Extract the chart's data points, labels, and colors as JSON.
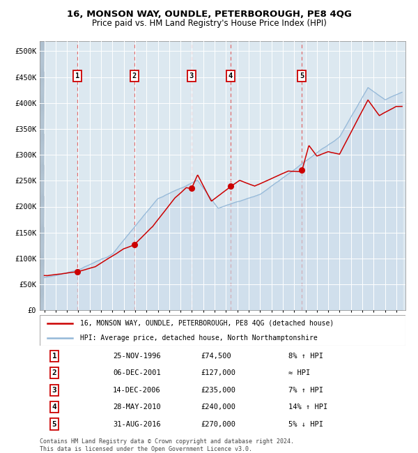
{
  "title1": "16, MONSON WAY, OUNDLE, PETERBOROUGH, PE8 4QG",
  "title2": "Price paid vs. HM Land Registry's House Price Index (HPI)",
  "ylabel_ticks": [
    "£0",
    "£50K",
    "£100K",
    "£150K",
    "£200K",
    "£250K",
    "£300K",
    "£350K",
    "£400K",
    "£450K",
    "£500K"
  ],
  "ytick_values": [
    0,
    50000,
    100000,
    150000,
    200000,
    250000,
    300000,
    350000,
    400000,
    450000,
    500000
  ],
  "xlim_left": 1993.6,
  "xlim_right": 2025.8,
  "ylim": [
    0,
    520000
  ],
  "ymax_visible": 500000,
  "sale_dates": [
    1996.91,
    2001.93,
    2006.96,
    2010.41,
    2016.66
  ],
  "sale_prices": [
    74500,
    127000,
    235000,
    240000,
    270000
  ],
  "sale_labels": [
    "1",
    "2",
    "3",
    "4",
    "5"
  ],
  "red_line_color": "#cc0000",
  "blue_line_color": "#94b8d8",
  "marker_color": "#cc0000",
  "dashed_line_color": "#e06060",
  "bg_color": "#dce8f0",
  "legend_entries": [
    "16, MONSON WAY, OUNDLE, PETERBOROUGH, PE8 4QG (detached house)",
    "HPI: Average price, detached house, North Northamptonshire"
  ],
  "table_data": [
    [
      "1",
      "25-NOV-1996",
      "£74,500",
      "8% ↑ HPI"
    ],
    [
      "2",
      "06-DEC-2001",
      "£127,000",
      "≈ HPI"
    ],
    [
      "3",
      "14-DEC-2006",
      "£235,000",
      "7% ↑ HPI"
    ],
    [
      "4",
      "28-MAY-2010",
      "£240,000",
      "14% ↑ HPI"
    ],
    [
      "5",
      "31-AUG-2016",
      "£270,000",
      "5% ↓ HPI"
    ]
  ],
  "footer": "Contains HM Land Registry data © Crown copyright and database right 2024.\nThis data is licensed under the Open Government Licence v3.0."
}
